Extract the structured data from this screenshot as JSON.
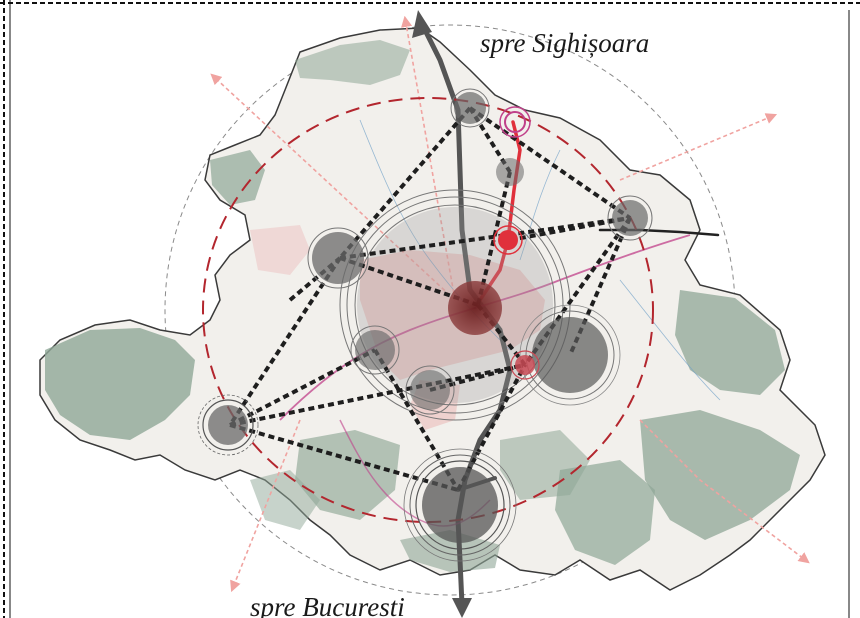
{
  "labels": {
    "north": "spre Sighișoara",
    "south": "spre Bucuresti"
  },
  "colors": {
    "border": "#111111",
    "map_fill": "#f2f0ec",
    "forest": "#8fa797",
    "outline": "#3a3a3a",
    "road_main": "#555555",
    "road_red": "#e0303b",
    "ring_red": "#b3262e",
    "ring_gray": "#8a8a8a",
    "link": "#222222",
    "pink_arrow": "#f0a3a0",
    "central_pole": "#7a2a2a",
    "urban_pink": "#e8a2a2"
  }
}
